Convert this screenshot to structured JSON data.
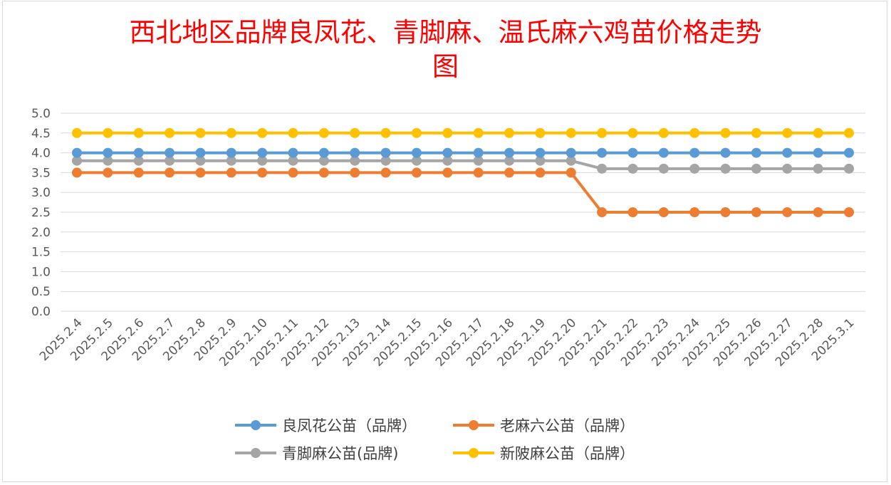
{
  "chart_data": {
    "type": "line",
    "title_line1": "西北地区品牌良凤花、青脚麻、温氏麻六鸡苗价格走势",
    "title_line2": "图",
    "xlabel": "",
    "ylabel": "",
    "ylim": [
      0,
      5
    ],
    "ytick_step": 0.5,
    "ytick_labels": [
      "0.0",
      "0.5",
      "1.0",
      "1.5",
      "2.0",
      "2.5",
      "3.0",
      "3.5",
      "4.0",
      "4.5",
      "5.0"
    ],
    "grid": true,
    "legend_position": "bottom",
    "categories": [
      "2025.2.4",
      "2025.2.5",
      "2025.2.6",
      "2025.2.7",
      "2025.2.8",
      "2025.2.9",
      "2025.2.10",
      "2025.2.11",
      "2025.2.12",
      "2025.2.13",
      "2025.2.14",
      "2025.2.15",
      "2025.2.16",
      "2025.2.17",
      "2025.2.18",
      "2025.2.19",
      "2025.2.20",
      "2025.2.21",
      "2025.2.22",
      "2025.2.23",
      "2025.2.24",
      "2025.2.25",
      "2025.2.26",
      "2025.2.27",
      "2025.2.28",
      "2025.3.1"
    ],
    "series": [
      {
        "name": "良凤花公苗（品牌）",
        "color": "#5b9bd5",
        "values": [
          4.0,
          4.0,
          4.0,
          4.0,
          4.0,
          4.0,
          4.0,
          4.0,
          4.0,
          4.0,
          4.0,
          4.0,
          4.0,
          4.0,
          4.0,
          4.0,
          4.0,
          4.0,
          4.0,
          4.0,
          4.0,
          4.0,
          4.0,
          4.0,
          4.0,
          4.0
        ]
      },
      {
        "name": "老麻六公苗（品牌）",
        "color": "#ed7d31",
        "values": [
          3.5,
          3.5,
          3.5,
          3.5,
          3.5,
          3.5,
          3.5,
          3.5,
          3.5,
          3.5,
          3.5,
          3.5,
          3.5,
          3.5,
          3.5,
          3.5,
          3.5,
          2.5,
          2.5,
          2.5,
          2.5,
          2.5,
          2.5,
          2.5,
          2.5,
          2.5
        ]
      },
      {
        "name": "青脚麻公苗(品牌)",
        "color": "#a5a5a5",
        "values": [
          3.8,
          3.8,
          3.8,
          3.8,
          3.8,
          3.8,
          3.8,
          3.8,
          3.8,
          3.8,
          3.8,
          3.8,
          3.8,
          3.8,
          3.8,
          3.8,
          3.8,
          3.6,
          3.6,
          3.6,
          3.6,
          3.6,
          3.6,
          3.6,
          3.6,
          3.6
        ]
      },
      {
        "name": "新陂麻公苗（品牌）",
        "color": "#ffc000",
        "values": [
          4.5,
          4.5,
          4.5,
          4.5,
          4.5,
          4.5,
          4.5,
          4.5,
          4.5,
          4.5,
          4.5,
          4.5,
          4.5,
          4.5,
          4.5,
          4.5,
          4.5,
          4.5,
          4.5,
          4.5,
          4.5,
          4.5,
          4.5,
          4.5,
          4.5,
          4.5
        ]
      }
    ],
    "draw_order": [
      2,
      1,
      0,
      3
    ]
  }
}
